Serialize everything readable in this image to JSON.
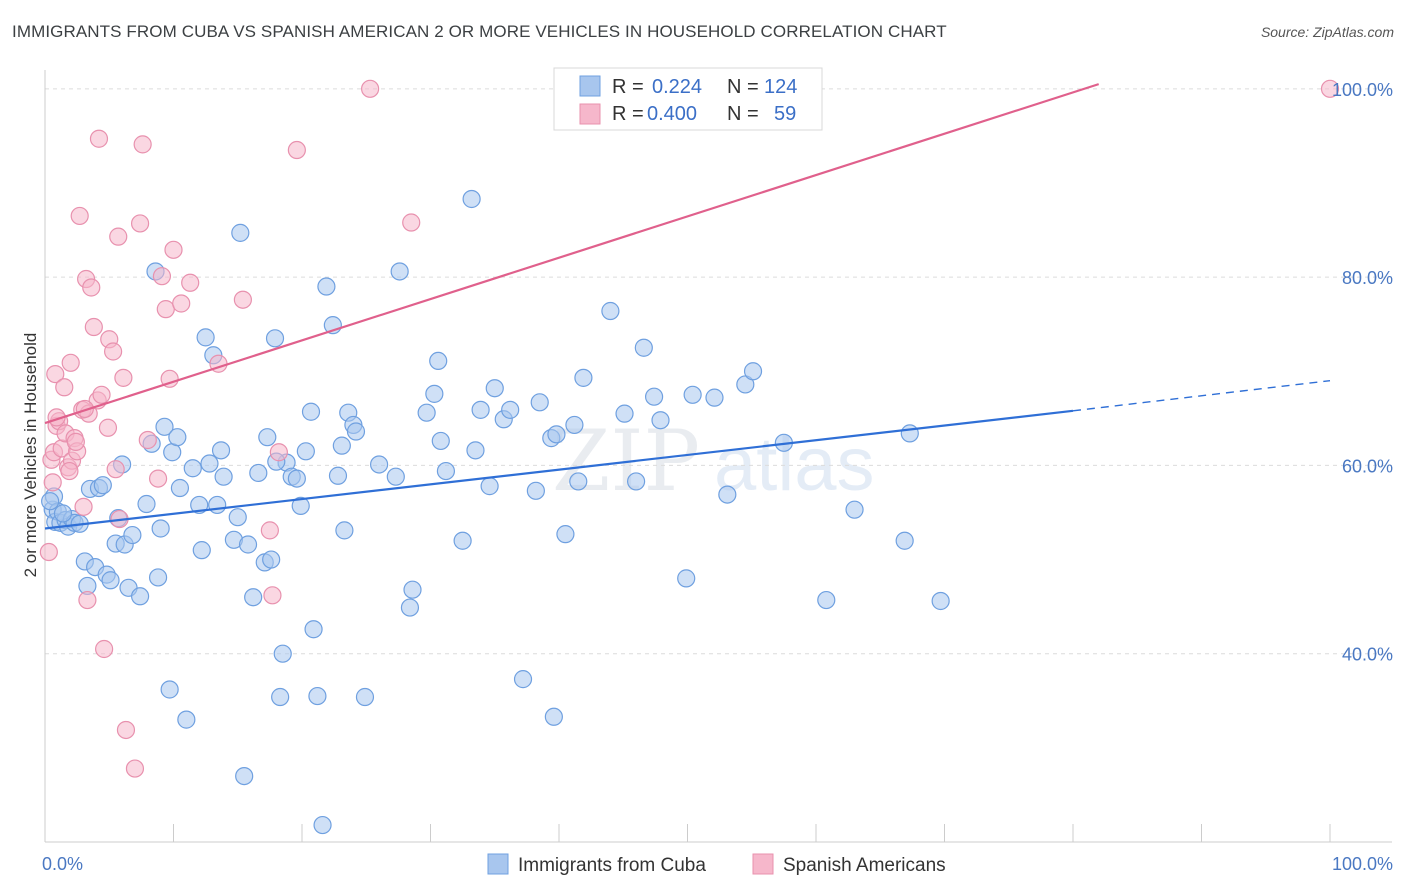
{
  "title": "IMMIGRANTS FROM CUBA VS SPANISH AMERICAN 2 OR MORE VEHICLES IN HOUSEHOLD CORRELATION CHART",
  "source": "Source: ZipAtlas.com",
  "watermark": {
    "zip": "ZIP",
    "atlas": "atlas"
  },
  "legend": {
    "rows": [
      {
        "r_label": "R =",
        "r_value": "0.224",
        "n_label": "N =",
        "n_value": "124",
        "color": "#a8c6ee"
      },
      {
        "r_label": "R =",
        "r_value": "0.400",
        "n_label": "N =",
        "n_value": "59",
        "color": "#f6b7cb"
      }
    ]
  },
  "bottom_legend": [
    {
      "label": "Immigrants from Cuba",
      "color": "#a8c6ee"
    },
    {
      "label": "Spanish Americans",
      "color": "#f6b7cb"
    }
  ],
  "chart_data": {
    "type": "scatter",
    "title": "IMMIGRANTS FROM CUBA VS SPANISH AMERICAN 2 OR MORE VEHICLES IN HOUSEHOLD CORRELATION CHART",
    "xlabel": "",
    "ylabel": "2 or more Vehicles in Household",
    "xlim": [
      0,
      100
    ],
    "ylim": [
      20,
      102
    ],
    "x_tick_labels": [
      "0.0%",
      "100.0%"
    ],
    "y_ticks": [
      40,
      60,
      80,
      100
    ],
    "y_tick_labels": [
      "40.0%",
      "60.0%",
      "80.0%",
      "100.0%"
    ],
    "grid": "horizontal dashed",
    "legend_position": "top-center",
    "series": [
      {
        "name": "Immigrants from Cuba",
        "color": "#6fa0e0",
        "fill": "#a8c6ee",
        "trend": {
          "x": [
            0,
            80
          ],
          "y": [
            53.3,
            65.8
          ],
          "dashed_to": [
            100,
            69.0
          ],
          "color": "#2f6fd6"
        },
        "points": [
          [
            0.6,
            55.3
          ],
          [
            0.7,
            56.7
          ],
          [
            0.8,
            54.0
          ],
          [
            1.0,
            55.1
          ],
          [
            1.2,
            53.9
          ],
          [
            1.6,
            54.2
          ],
          [
            1.8,
            53.5
          ],
          [
            2.1,
            54.3
          ],
          [
            2.3,
            53.9
          ],
          [
            3.1,
            49.8
          ],
          [
            3.3,
            47.2
          ],
          [
            3.5,
            57.5
          ],
          [
            3.9,
            49.2
          ],
          [
            4.2,
            57.6
          ],
          [
            4.5,
            57.9
          ],
          [
            4.8,
            48.4
          ],
          [
            5.1,
            47.8
          ],
          [
            5.5,
            51.7
          ],
          [
            5.7,
            54.4
          ],
          [
            6.0,
            60.1
          ],
          [
            6.2,
            51.6
          ],
          [
            6.5,
            47.0
          ],
          [
            6.8,
            52.6
          ],
          [
            7.4,
            46.1
          ],
          [
            7.9,
            55.9
          ],
          [
            8.3,
            62.3
          ],
          [
            8.6,
            80.6
          ],
          [
            8.8,
            48.1
          ],
          [
            9.0,
            53.3
          ],
          [
            9.3,
            64.1
          ],
          [
            9.7,
            36.2
          ],
          [
            9.9,
            61.4
          ],
          [
            10.3,
            63.0
          ],
          [
            10.5,
            57.6
          ],
          [
            11.0,
            33.0
          ],
          [
            11.5,
            59.7
          ],
          [
            12.0,
            55.8
          ],
          [
            12.2,
            51.0
          ],
          [
            12.5,
            73.6
          ],
          [
            12.8,
            60.2
          ],
          [
            13.1,
            71.7
          ],
          [
            13.4,
            55.8
          ],
          [
            13.7,
            61.6
          ],
          [
            13.9,
            58.8
          ],
          [
            14.7,
            52.1
          ],
          [
            15.0,
            54.5
          ],
          [
            15.2,
            84.7
          ],
          [
            15.5,
            27.0
          ],
          [
            15.8,
            51.6
          ],
          [
            16.2,
            46.0
          ],
          [
            16.6,
            59.2
          ],
          [
            17.1,
            49.7
          ],
          [
            17.3,
            63.0
          ],
          [
            17.6,
            50.0
          ],
          [
            17.9,
            73.5
          ],
          [
            18.3,
            35.4
          ],
          [
            18.5,
            40.0
          ],
          [
            18.8,
            60.3
          ],
          [
            19.2,
            58.8
          ],
          [
            19.6,
            58.6
          ],
          [
            19.9,
            55.7
          ],
          [
            20.3,
            61.5
          ],
          [
            20.7,
            65.7
          ],
          [
            20.9,
            42.6
          ],
          [
            21.2,
            35.5
          ],
          [
            21.6,
            21.8
          ],
          [
            21.9,
            79.0
          ],
          [
            22.4,
            74.9
          ],
          [
            22.8,
            58.9
          ],
          [
            23.1,
            62.1
          ],
          [
            23.3,
            53.1
          ],
          [
            23.6,
            65.6
          ],
          [
            24.0,
            64.3
          ],
          [
            24.9,
            35.4
          ],
          [
            26.0,
            60.1
          ],
          [
            27.3,
            58.8
          ],
          [
            27.6,
            80.6
          ],
          [
            28.4,
            44.9
          ],
          [
            28.6,
            46.8
          ],
          [
            29.7,
            65.6
          ],
          [
            30.3,
            67.6
          ],
          [
            30.6,
            71.1
          ],
          [
            30.8,
            62.6
          ],
          [
            31.2,
            59.4
          ],
          [
            32.5,
            52.0
          ],
          [
            33.2,
            88.3
          ],
          [
            33.5,
            61.6
          ],
          [
            33.9,
            65.9
          ],
          [
            34.6,
            57.8
          ],
          [
            35.0,
            68.2
          ],
          [
            35.7,
            64.9
          ],
          [
            36.2,
            65.9
          ],
          [
            37.2,
            37.3
          ],
          [
            38.2,
            57.3
          ],
          [
            38.5,
            66.7
          ],
          [
            39.4,
            62.9
          ],
          [
            39.6,
            33.3
          ],
          [
            39.8,
            63.3
          ],
          [
            40.5,
            52.7
          ],
          [
            41.2,
            64.3
          ],
          [
            41.5,
            58.3
          ],
          [
            41.9,
            69.3
          ],
          [
            44.0,
            76.4
          ],
          [
            45.1,
            65.5
          ],
          [
            46.0,
            58.3
          ],
          [
            46.6,
            72.5
          ],
          [
            47.4,
            67.3
          ],
          [
            47.9,
            64.8
          ],
          [
            49.9,
            48.0
          ],
          [
            50.4,
            67.5
          ],
          [
            52.1,
            67.2
          ],
          [
            53.1,
            56.9
          ],
          [
            54.5,
            68.6
          ],
          [
            55.1,
            70.0
          ],
          [
            57.5,
            62.4
          ],
          [
            60.8,
            45.7
          ],
          [
            63.0,
            55.3
          ],
          [
            66.9,
            52.0
          ],
          [
            67.3,
            63.4
          ],
          [
            69.7,
            45.6
          ],
          [
            0.4,
            56.2
          ],
          [
            1.4,
            54.9
          ],
          [
            2.7,
            53.8
          ],
          [
            18.0,
            60.4
          ],
          [
            24.2,
            63.6
          ]
        ]
      },
      {
        "name": "Spanish Americans",
        "color": "#e891ae",
        "fill": "#f6b7cb",
        "trend": {
          "x": [
            0,
            82
          ],
          "y": [
            64.5,
            100.5
          ],
          "color": "#e0608c"
        },
        "points": [
          [
            0.3,
            50.8
          ],
          [
            0.5,
            60.6
          ],
          [
            0.6,
            58.2
          ],
          [
            0.7,
            61.4
          ],
          [
            0.8,
            69.7
          ],
          [
            0.9,
            64.2
          ],
          [
            1.1,
            64.7
          ],
          [
            1.3,
            61.8
          ],
          [
            1.5,
            68.3
          ],
          [
            1.6,
            63.4
          ],
          [
            1.8,
            59.8
          ],
          [
            2.0,
            70.9
          ],
          [
            2.1,
            60.5
          ],
          [
            2.3,
            62.9
          ],
          [
            2.5,
            61.5
          ],
          [
            2.7,
            86.5
          ],
          [
            2.9,
            65.9
          ],
          [
            3.0,
            55.6
          ],
          [
            3.2,
            79.8
          ],
          [
            3.3,
            45.7
          ],
          [
            3.4,
            65.5
          ],
          [
            3.6,
            78.9
          ],
          [
            3.8,
            74.7
          ],
          [
            4.1,
            66.9
          ],
          [
            4.2,
            94.7
          ],
          [
            4.4,
            67.5
          ],
          [
            4.6,
            40.5
          ],
          [
            4.9,
            64.0
          ],
          [
            5.0,
            73.4
          ],
          [
            5.3,
            72.1
          ],
          [
            5.5,
            59.6
          ],
          [
            5.7,
            84.3
          ],
          [
            5.8,
            54.3
          ],
          [
            6.1,
            69.3
          ],
          [
            6.3,
            31.9
          ],
          [
            7.0,
            27.8
          ],
          [
            7.4,
            85.7
          ],
          [
            7.6,
            94.1
          ],
          [
            8.0,
            62.7
          ],
          [
            8.8,
            58.6
          ],
          [
            9.1,
            80.1
          ],
          [
            9.4,
            76.6
          ],
          [
            9.7,
            69.2
          ],
          [
            10.0,
            82.9
          ],
          [
            10.6,
            77.2
          ],
          [
            11.3,
            79.4
          ],
          [
            13.5,
            70.8
          ],
          [
            15.4,
            77.6
          ],
          [
            17.5,
            53.1
          ],
          [
            17.7,
            46.2
          ],
          [
            18.2,
            61.4
          ],
          [
            19.6,
            93.5
          ],
          [
            25.3,
            100.0
          ],
          [
            28.5,
            85.8
          ],
          [
            100.0,
            100.0
          ],
          [
            0.9,
            65.1
          ],
          [
            1.9,
            59.4
          ],
          [
            2.4,
            62.5
          ],
          [
            3.1,
            66.0
          ]
        ]
      }
    ]
  }
}
